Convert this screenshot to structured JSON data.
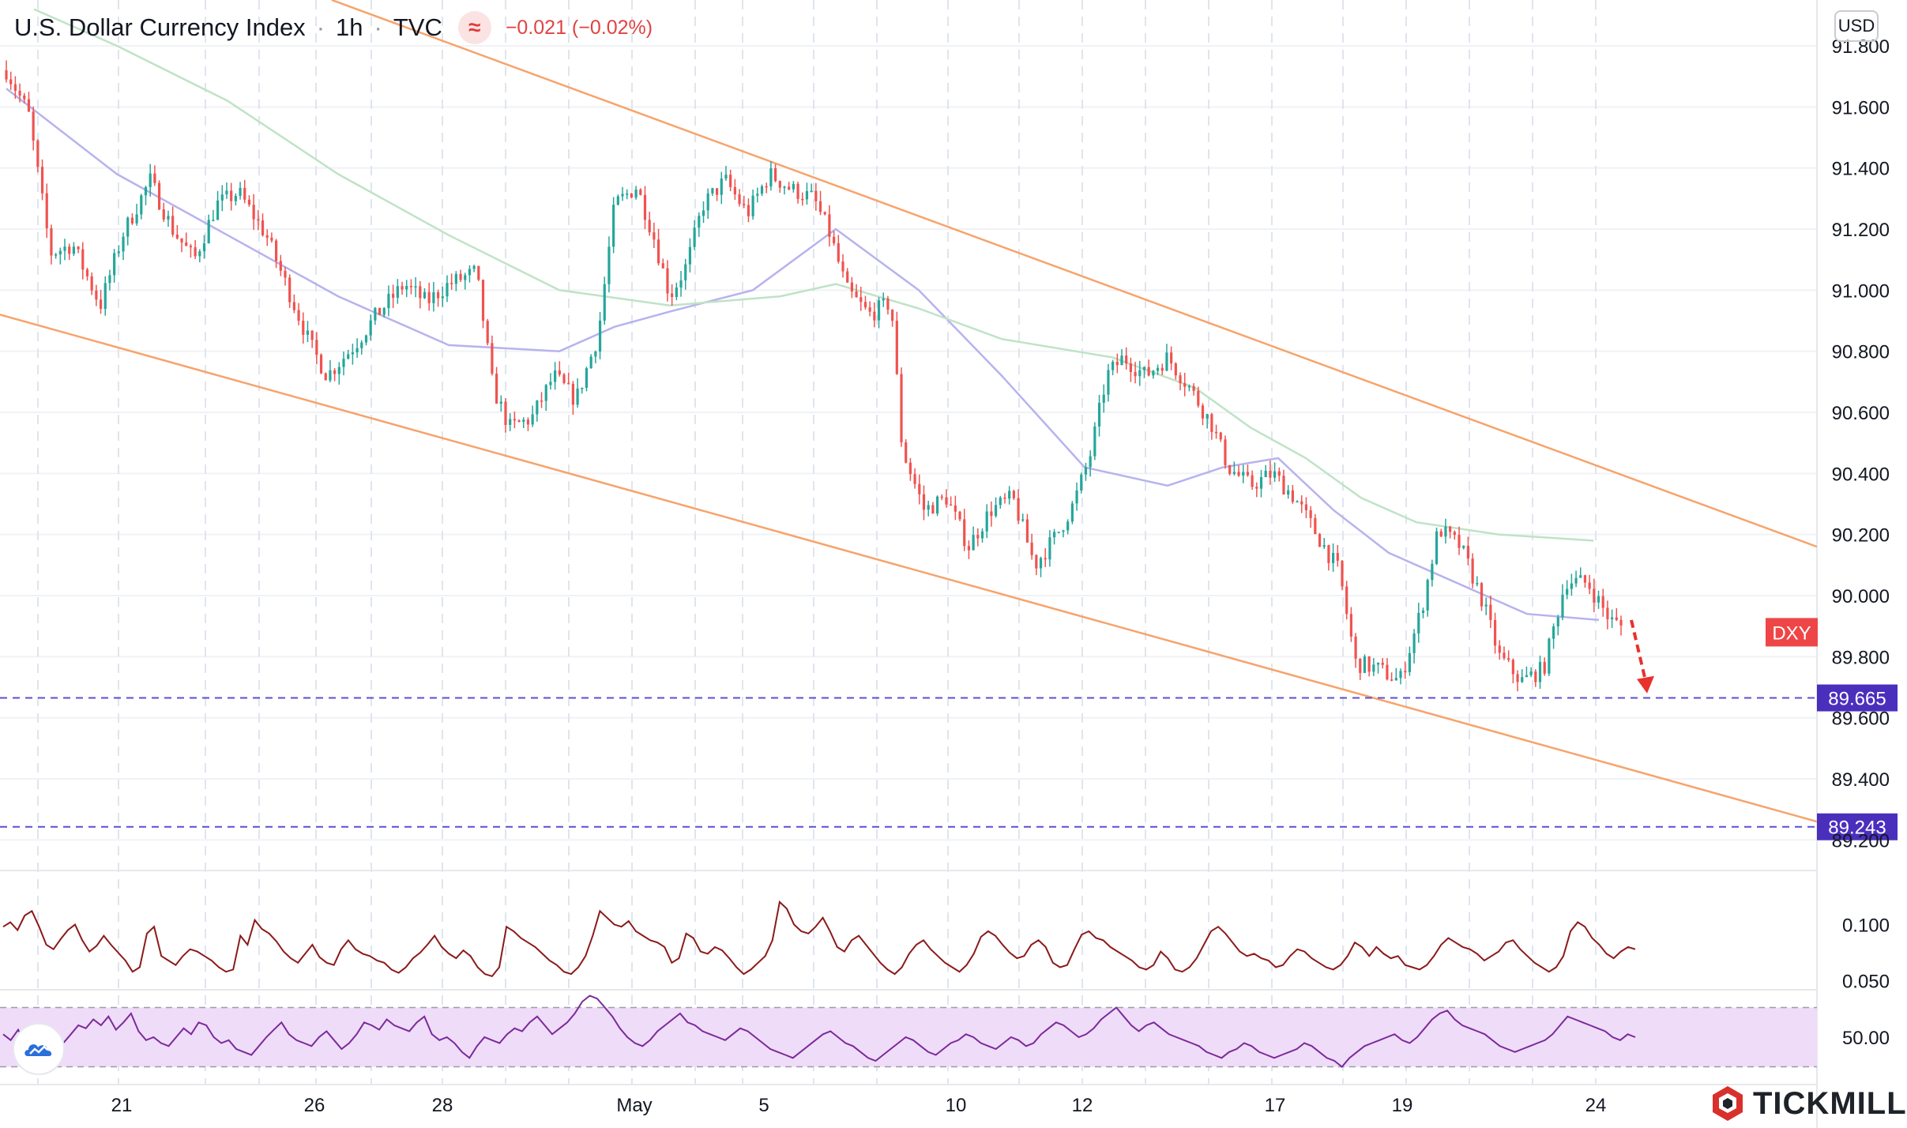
{
  "header": {
    "symbol_name": "U.S. Dollar Currency Index",
    "interval": "1h",
    "exchange": "TVC",
    "indicator_icon": "approx-icon",
    "change": "−0.021 (−0.02%)"
  },
  "currency_button": "USD",
  "brand": {
    "name": "TICKMILL",
    "logo_icon": "tickmill-cube-icon",
    "platform_icon": "tradingview-cloud-icon"
  },
  "colors": {
    "up": "#26a69a",
    "down": "#ef5350",
    "channel": "#f7a36b",
    "ma_fast": "#b7b3ee",
    "ma_slow": "#bfe3c6",
    "level_line": "#5b4fd6",
    "level_label_bg": "#4a2fbd",
    "dxy_label_bg": "#ee4646",
    "atr_line": "#8b1a1a",
    "rsi_line": "#7b2a9a",
    "rsi_band": "#efdcf8",
    "forecast_arrow": "#e8312c"
  },
  "chart_data": [
    {
      "type": "candlestick",
      "series_name": "DXY",
      "price_axis": {
        "ylim": [
          89.1,
          91.95
        ],
        "ticks": [
          "91.800",
          "91.600",
          "91.400",
          "91.200",
          "91.000",
          "90.800",
          "90.600",
          "90.400",
          "90.200",
          "90.000",
          "89.800",
          "89.600",
          "89.400",
          "89.200"
        ]
      },
      "time_axis": {
        "labels": [
          "21",
          "26",
          "28",
          "May",
          "5",
          "10",
          "12",
          "17",
          "19",
          "24"
        ],
        "range_days": [
          "Apr 20",
          "May 24"
        ]
      },
      "current_label": "DXY",
      "current_value": 89.88,
      "key_levels": [
        {
          "value": 89.665,
          "label": "89.665"
        },
        {
          "value": 89.243,
          "label": "89.243"
        }
      ],
      "descending_channel": {
        "upper": {
          "start_value": 92.05,
          "end_value": 90.16
        },
        "lower": {
          "start_value": 90.92,
          "end_value": 89.26
        }
      },
      "forecast_arrow": {
        "from": 89.92,
        "to": 89.68
      },
      "price_path": [
        [
          0,
          91.72
        ],
        [
          0.4,
          91.58
        ],
        [
          0.8,
          91.12
        ],
        [
          1.2,
          91.15
        ],
        [
          1.7,
          90.95
        ],
        [
          2.1,
          91.18
        ],
        [
          2.6,
          91.36
        ],
        [
          3.0,
          91.2
        ],
        [
          3.4,
          91.1
        ],
        [
          3.8,
          91.28
        ],
        [
          4.2,
          91.32
        ],
        [
          4.7,
          91.18
        ],
        [
          5.1,
          91.0
        ],
        [
          5.5,
          90.82
        ],
        [
          5.8,
          90.72
        ],
        [
          6.3,
          90.82
        ],
        [
          6.7,
          90.92
        ],
        [
          7.2,
          91.02
        ],
        [
          7.6,
          90.96
        ],
        [
          8.0,
          91.02
        ],
        [
          8.5,
          91.06
        ],
        [
          8.8,
          90.68
        ],
        [
          9.1,
          90.55
        ],
        [
          9.5,
          90.58
        ],
        [
          9.9,
          90.72
        ],
        [
          10.3,
          90.64
        ],
        [
          10.7,
          90.85
        ],
        [
          11.0,
          91.28
        ],
        [
          11.4,
          91.34
        ],
        [
          11.7,
          91.18
        ],
        [
          12.0,
          90.98
        ],
        [
          12.3,
          91.08
        ],
        [
          12.6,
          91.28
        ],
        [
          13.0,
          91.36
        ],
        [
          13.4,
          91.25
        ],
        [
          13.8,
          91.38
        ],
        [
          14.2,
          91.33
        ],
        [
          14.6,
          91.3
        ],
        [
          14.9,
          91.18
        ],
        [
          15.2,
          91.0
        ],
        [
          15.6,
          90.92
        ],
        [
          16.0,
          90.96
        ],
        [
          16.2,
          90.48
        ],
        [
          16.6,
          90.28
        ],
        [
          17.0,
          90.32
        ],
        [
          17.4,
          90.16
        ],
        [
          17.8,
          90.28
        ],
        [
          18.2,
          90.32
        ],
        [
          18.6,
          90.1
        ],
        [
          19.0,
          90.2
        ],
        [
          19.3,
          90.3
        ],
        [
          19.6,
          90.46
        ],
        [
          19.9,
          90.72
        ],
        [
          20.2,
          90.78
        ],
        [
          20.6,
          90.72
        ],
        [
          21.0,
          90.78
        ],
        [
          21.4,
          90.68
        ],
        [
          21.8,
          90.56
        ],
        [
          22.1,
          90.42
        ],
        [
          22.5,
          90.36
        ],
        [
          22.9,
          90.4
        ],
        [
          23.3,
          90.32
        ],
        [
          23.7,
          90.2
        ],
        [
          24.1,
          90.08
        ],
        [
          24.4,
          89.78
        ],
        [
          24.8,
          89.76
        ],
        [
          25.2,
          89.72
        ],
        [
          25.6,
          89.96
        ],
        [
          25.9,
          90.22
        ],
        [
          26.3,
          90.16
        ],
        [
          26.7,
          89.98
        ],
        [
          27.0,
          89.8
        ],
        [
          27.4,
          89.72
        ],
        [
          27.8,
          89.76
        ],
        [
          28.2,
          90.05
        ],
        [
          28.6,
          90.04
        ],
        [
          29.0,
          89.92
        ],
        [
          29.2,
          89.9
        ]
      ],
      "moving_averages": [
        {
          "id": "ma_fast",
          "points": [
            [
              0,
              91.66
            ],
            [
              2,
              91.38
            ],
            [
              4,
              91.18
            ],
            [
              6,
              90.98
            ],
            [
              8,
              90.82
            ],
            [
              10,
              90.8
            ],
            [
              11,
              90.88
            ],
            [
              12,
              90.93
            ],
            [
              13.5,
              91.0
            ],
            [
              15,
              91.2
            ],
            [
              16.5,
              91.0
            ],
            [
              18,
              90.72
            ],
            [
              19.5,
              90.42
            ],
            [
              21,
              90.36
            ],
            [
              22,
              90.42
            ],
            [
              23,
              90.45
            ],
            [
              24,
              90.28
            ],
            [
              25,
              90.14
            ],
            [
              26,
              90.06
            ],
            [
              27.5,
              89.94
            ],
            [
              28.8,
              89.92
            ]
          ]
        },
        {
          "id": "ma_slow",
          "points": [
            [
              0.5,
              91.92
            ],
            [
              2,
              91.8
            ],
            [
              4,
              91.62
            ],
            [
              6,
              91.38
            ],
            [
              8,
              91.18
            ],
            [
              10,
              91.0
            ],
            [
              12,
              90.95
            ],
            [
              14,
              90.98
            ],
            [
              15,
              91.02
            ],
            [
              16.5,
              90.94
            ],
            [
              18,
              90.84
            ],
            [
              20,
              90.78
            ],
            [
              21.5,
              90.68
            ],
            [
              22.5,
              90.55
            ],
            [
              23.5,
              90.45
            ],
            [
              24.5,
              90.32
            ],
            [
              25.5,
              90.24
            ],
            [
              27,
              90.2
            ],
            [
              28.7,
              90.18
            ]
          ]
        }
      ]
    },
    {
      "type": "line",
      "series_name": "ATR",
      "axis_ticks": [
        "0.100",
        "0.050"
      ],
      "ylim": [
        0.042,
        0.148
      ],
      "values": [
        0.098,
        0.102,
        0.095,
        0.108,
        0.112,
        0.098,
        0.082,
        0.078,
        0.087,
        0.095,
        0.1,
        0.086,
        0.076,
        0.081,
        0.09,
        0.082,
        0.075,
        0.068,
        0.058,
        0.062,
        0.092,
        0.098,
        0.072,
        0.068,
        0.064,
        0.072,
        0.078,
        0.076,
        0.072,
        0.068,
        0.062,
        0.058,
        0.06,
        0.09,
        0.082,
        0.104,
        0.096,
        0.092,
        0.085,
        0.076,
        0.07,
        0.066,
        0.074,
        0.082,
        0.071,
        0.066,
        0.064,
        0.078,
        0.086,
        0.078,
        0.074,
        0.072,
        0.068,
        0.066,
        0.06,
        0.057,
        0.062,
        0.07,
        0.075,
        0.082,
        0.09,
        0.08,
        0.074,
        0.07,
        0.077,
        0.072,
        0.062,
        0.056,
        0.054,
        0.062,
        0.098,
        0.094,
        0.088,
        0.084,
        0.08,
        0.074,
        0.068,
        0.064,
        0.058,
        0.056,
        0.062,
        0.072,
        0.09,
        0.112,
        0.106,
        0.1,
        0.098,
        0.103,
        0.094,
        0.09,
        0.086,
        0.084,
        0.08,
        0.066,
        0.07,
        0.092,
        0.088,
        0.076,
        0.074,
        0.08,
        0.077,
        0.07,
        0.062,
        0.056,
        0.06,
        0.066,
        0.072,
        0.086,
        0.12,
        0.114,
        0.1,
        0.094,
        0.092,
        0.098,
        0.106,
        0.094,
        0.08,
        0.076,
        0.086,
        0.09,
        0.082,
        0.074,
        0.066,
        0.06,
        0.056,
        0.062,
        0.074,
        0.082,
        0.086,
        0.078,
        0.072,
        0.066,
        0.062,
        0.058,
        0.064,
        0.074,
        0.089,
        0.094,
        0.09,
        0.082,
        0.075,
        0.07,
        0.072,
        0.082,
        0.086,
        0.08,
        0.066,
        0.062,
        0.064,
        0.078,
        0.091,
        0.094,
        0.088,
        0.086,
        0.08,
        0.076,
        0.072,
        0.068,
        0.062,
        0.06,
        0.064,
        0.076,
        0.07,
        0.06,
        0.058,
        0.062,
        0.07,
        0.082,
        0.094,
        0.098,
        0.092,
        0.084,
        0.076,
        0.072,
        0.074,
        0.07,
        0.068,
        0.062,
        0.064,
        0.072,
        0.078,
        0.076,
        0.07,
        0.066,
        0.062,
        0.06,
        0.064,
        0.072,
        0.084,
        0.08,
        0.072,
        0.08,
        0.074,
        0.07,
        0.072,
        0.064,
        0.062,
        0.06,
        0.064,
        0.072,
        0.082,
        0.088,
        0.084,
        0.08,
        0.078,
        0.074,
        0.068,
        0.072,
        0.076,
        0.084,
        0.086,
        0.078,
        0.072,
        0.066,
        0.062,
        0.058,
        0.062,
        0.072,
        0.094,
        0.102,
        0.098,
        0.088,
        0.082,
        0.074,
        0.07,
        0.076,
        0.08,
        0.078
      ]
    },
    {
      "type": "line",
      "series_name": "RSI",
      "axis_ticks": [
        "50.00"
      ],
      "ylim": [
        18,
        82
      ],
      "band": [
        30,
        70
      ],
      "values": [
        52,
        48,
        55,
        44,
        40,
        50,
        42,
        38,
        46,
        52,
        58,
        56,
        62,
        58,
        64,
        55,
        60,
        66,
        54,
        48,
        50,
        46,
        44,
        50,
        56,
        52,
        60,
        58,
        50,
        46,
        48,
        42,
        40,
        38,
        44,
        50,
        55,
        60,
        52,
        48,
        46,
        44,
        50,
        54,
        48,
        42,
        46,
        52,
        60,
        58,
        55,
        62,
        58,
        56,
        54,
        60,
        64,
        52,
        48,
        50,
        46,
        40,
        36,
        44,
        50,
        48,
        46,
        52,
        56,
        54,
        60,
        64,
        58,
        52,
        56,
        60,
        66,
        74,
        78,
        76,
        70,
        64,
        56,
        50,
        46,
        44,
        48,
        54,
        58,
        62,
        66,
        60,
        58,
        54,
        52,
        50,
        48,
        52,
        56,
        54,
        50,
        46,
        42,
        40,
        38,
        36,
        40,
        44,
        48,
        52,
        54,
        50,
        46,
        44,
        40,
        36,
        34,
        38,
        42,
        46,
        50,
        48,
        44,
        40,
        38,
        42,
        46,
        48,
        52,
        50,
        46,
        44,
        42,
        46,
        50,
        48,
        44,
        46,
        52,
        56,
        60,
        58,
        54,
        50,
        52,
        56,
        62,
        66,
        70,
        64,
        58,
        54,
        58,
        60,
        56,
        52,
        50,
        48,
        46,
        44,
        40,
        38,
        36,
        40,
        42,
        46,
        44,
        40,
        38,
        36,
        38,
        40,
        42,
        46,
        44,
        40,
        36,
        34,
        30,
        36,
        40,
        44,
        46,
        48,
        50,
        52,
        48,
        46,
        50,
        56,
        62,
        66,
        68,
        62,
        58,
        56,
        54,
        52,
        48,
        44,
        42,
        40,
        42,
        44,
        46,
        48,
        52,
        58,
        64,
        62,
        60,
        58,
        56,
        54,
        50,
        48,
        52,
        50
      ]
    }
  ]
}
